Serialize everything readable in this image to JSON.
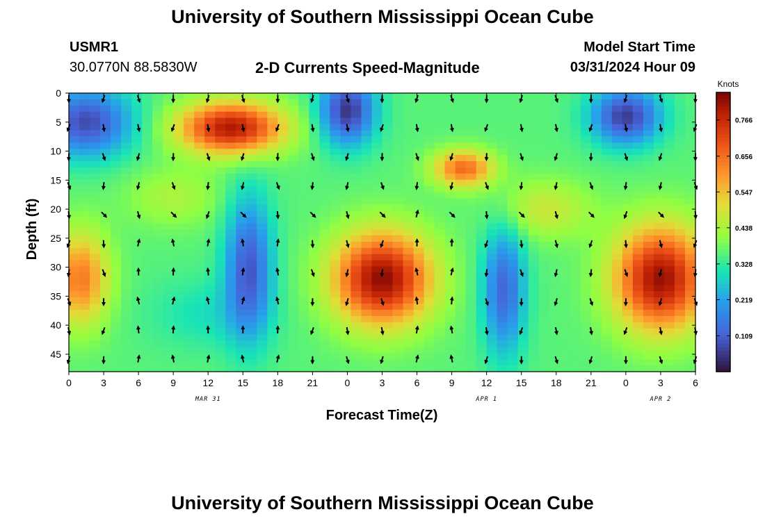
{
  "header": {
    "title": "University of Southern Mississippi Ocean Cube",
    "station": "USMR1",
    "coordinates": "30.0770N  88.5830W",
    "product": "2-D Currents Speed-Magnitude",
    "model_start_label": "Model Start Time",
    "model_start_value": "03/31/2024 Hour 09"
  },
  "footer": {
    "title": "University of Southern Mississippi Ocean Cube"
  },
  "chart_data": {
    "type": "heatmap",
    "title": "2-D Currents Speed-Magnitude",
    "xlabel": "Forecast Time(Z)",
    "ylabel": "Depth (ft)",
    "x_hours": [
      0,
      54
    ],
    "y_depth_ft": [
      0,
      48
    ],
    "xticks": [
      "0",
      "3",
      "6",
      "9",
      "12",
      "15",
      "18",
      "21",
      "0",
      "3",
      "6",
      "9",
      "12",
      "15",
      "18",
      "21",
      "0",
      "3",
      "6"
    ],
    "yticks": [
      "0",
      "5",
      "10",
      "15",
      "20",
      "25",
      "30",
      "35",
      "40",
      "45"
    ],
    "date_labels": [
      {
        "text": "MAR 31",
        "hour": 12
      },
      {
        "text": "APR 1",
        "hour": 36
      },
      {
        "text": "APR 2",
        "hour": 51
      }
    ],
    "colorbar": {
      "label": "Knots",
      "min": 0.0,
      "max": 0.85,
      "ticks": [
        "0.766",
        "0.656",
        "0.547",
        "0.438",
        "0.328",
        "0.219",
        "0.109"
      ]
    },
    "speed_field_knots": [
      {
        "hour": 1.5,
        "depth": 5,
        "value": 0.08
      },
      {
        "hour": 24,
        "depth": 3,
        "value": 0.05
      },
      {
        "hour": 48,
        "depth": 4,
        "value": 0.06
      },
      {
        "hour": 14,
        "depth": 6,
        "value": 0.8
      },
      {
        "hour": 34,
        "depth": 13,
        "value": 0.66
      },
      {
        "hour": 1,
        "depth": 32,
        "value": 0.64
      },
      {
        "hour": 27,
        "depth": 32,
        "value": 0.83
      },
      {
        "hour": 51,
        "depth": 32,
        "value": 0.82
      },
      {
        "hour": 15.5,
        "depth": 30,
        "value": 0.1
      },
      {
        "hour": 37.5,
        "depth": 34,
        "value": 0.12
      },
      {
        "hour": 12,
        "depth": 38,
        "value": 0.3
      }
    ],
    "arrow_grid": {
      "hour_step": 3,
      "depth_step": 5,
      "note": "direction arrows, black"
    }
  }
}
